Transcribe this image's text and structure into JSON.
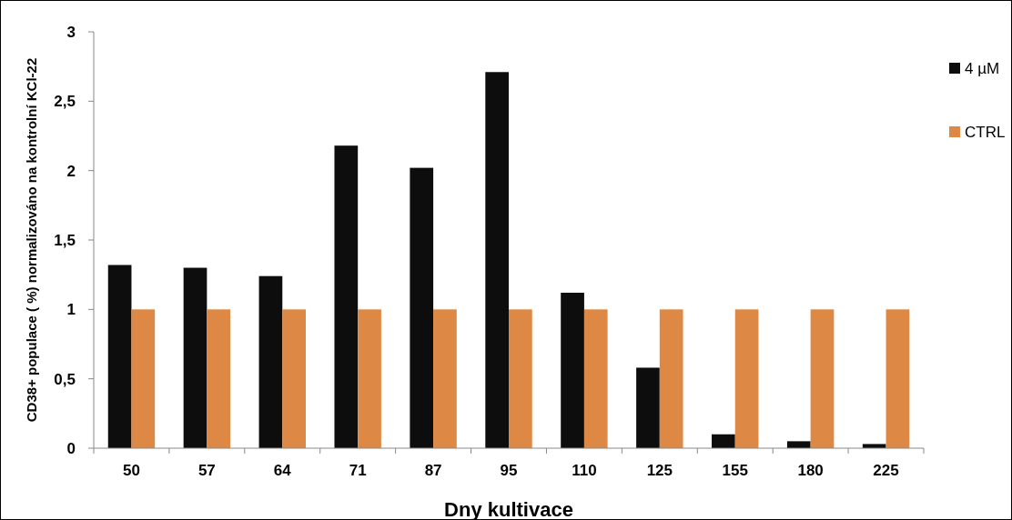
{
  "chart_data": {
    "type": "bar",
    "xlabel": "Dny kultivace",
    "ylabel": "CD38+ populace ( %) normalizováno na kontrolní KCl-22",
    "categories": [
      "50",
      "57",
      "64",
      "71",
      "87",
      "95",
      "110",
      "125",
      "155",
      "180",
      "225"
    ],
    "series": [
      {
        "name": "4 µM",
        "color": "#0d0d0d",
        "values": [
          1.32,
          1.3,
          1.24,
          2.18,
          2.02,
          2.71,
          1.12,
          0.58,
          0.1,
          0.05,
          0.03
        ]
      },
      {
        "name": "CTRL",
        "color": "#dd8844",
        "values": [
          1,
          1,
          1,
          1,
          1,
          1,
          1,
          1,
          1,
          1,
          1
        ]
      }
    ],
    "ylim": [
      0,
      3
    ],
    "yticks": [
      0,
      {
        "value": 0.5,
        "label": "0,5"
      },
      1,
      {
        "value": 1.5,
        "label": "1,5"
      },
      2,
      {
        "value": 2.5,
        "label": "2,5"
      },
      3
    ],
    "grid": false,
    "legend": "right"
  }
}
